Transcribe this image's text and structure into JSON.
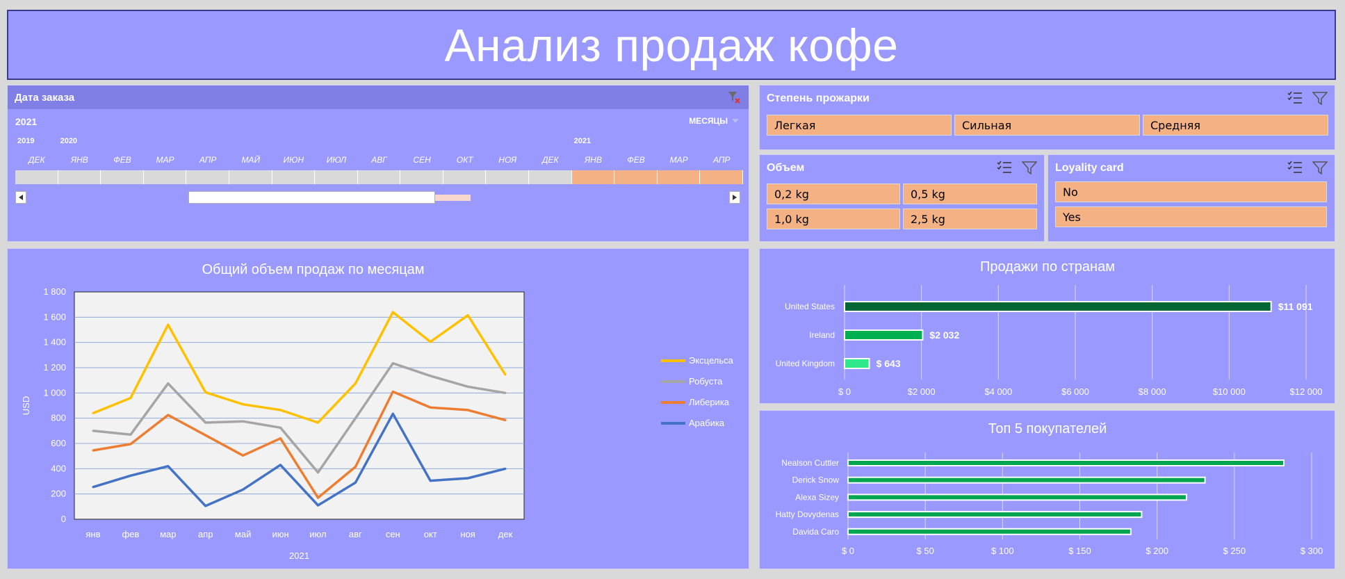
{
  "title": "Анализ продаж кофе",
  "timeline": {
    "header": "Дата заказа",
    "selected_year": "2021",
    "level_label": "МЕСЯЦЫ",
    "year_marks": [
      {
        "label": "2019",
        "col": 0
      },
      {
        "label": "2020",
        "col": 1
      },
      {
        "label": "2021",
        "col": 13
      }
    ],
    "months": [
      "ДЕК",
      "ЯНВ",
      "ФЕВ",
      "МАР",
      "АПР",
      "МАЙ",
      "ИЮН",
      "ИЮЛ",
      "АВГ",
      "СЕН",
      "ОКТ",
      "НОЯ",
      "ДЕК",
      "ЯНВ",
      "ФЕВ",
      "МАР",
      "АПР"
    ],
    "selected_from_col": 13
  },
  "roast_slicer": {
    "header": "Степень прожарки",
    "items": [
      "Легкая",
      "Сильная",
      "Средняя"
    ]
  },
  "volume_slicer": {
    "header": "Объем",
    "items": [
      "0,2 kg",
      "0,5 kg",
      "1,0 kg",
      "2,5 kg"
    ]
  },
  "loyalty_slicer": {
    "header": "Loyality card",
    "items": [
      "No",
      "Yes"
    ]
  },
  "chart_data": [
    {
      "type": "line",
      "title": "Общий объем продаж по месяцам",
      "xlabel": "2021",
      "ylabel": "USD",
      "categories": [
        "янв",
        "фев",
        "мар",
        "апр",
        "май",
        "июн",
        "июл",
        "авг",
        "сен",
        "окт",
        "ноя",
        "дек"
      ],
      "ylim": [
        0,
        1800
      ],
      "yticks": [
        0,
        200,
        400,
        600,
        800,
        1000,
        1200,
        1400,
        1600,
        1800
      ],
      "ytick_labels": [
        "0",
        "200",
        "400",
        "600",
        "800",
        "1 000",
        "1 200",
        "1 400",
        "1 600",
        "1 800"
      ],
      "grid": true,
      "legend_position": "right",
      "series": [
        {
          "name": "Эксцельса",
          "color": "#ffc000",
          "values": [
            840,
            960,
            1540,
            1005,
            910,
            865,
            765,
            1075,
            1640,
            1405,
            1615,
            1145
          ]
        },
        {
          "name": "Робуста",
          "color": "#a5a5a5",
          "values": [
            700,
            670,
            1075,
            765,
            775,
            725,
            370,
            800,
            1235,
            1135,
            1050,
            1000
          ]
        },
        {
          "name": "Либерика",
          "color": "#ed7d31",
          "values": [
            545,
            595,
            825,
            665,
            505,
            640,
            170,
            415,
            1010,
            885,
            865,
            785
          ]
        },
        {
          "name": "Арабика",
          "color": "#4472c4",
          "values": [
            255,
            345,
            420,
            105,
            235,
            430,
            110,
            290,
            835,
            305,
            325,
            400
          ]
        }
      ]
    },
    {
      "type": "bar",
      "orientation": "horizontal",
      "title": "Продажи по странам",
      "categories": [
        "United States",
        "Ireland",
        "United Kingdom"
      ],
      "values": [
        11091,
        2032,
        643
      ],
      "value_labels": [
        "$11 091",
        "$2 032",
        "$ 643"
      ],
      "colors": [
        "#006633",
        "#00b050",
        "#2ee88c"
      ],
      "xlim": [
        0,
        12000
      ],
      "xticks": [
        0,
        2000,
        4000,
        6000,
        8000,
        10000,
        12000
      ],
      "xtick_labels": [
        "$ 0",
        "$2 000",
        "$4 000",
        "$6 000",
        "$8 000",
        "$10 000",
        "$12 000"
      ],
      "grid": true
    },
    {
      "type": "bar",
      "orientation": "horizontal",
      "title": "Топ 5 покупателей",
      "categories": [
        "Nealson Cuttler",
        "Derick Snow",
        "Alexa Sizey",
        "Hatty Dovydenas",
        "Davida Caro"
      ],
      "values": [
        282,
        231,
        219,
        190,
        183
      ],
      "color": "#00a550",
      "xlim": [
        0,
        300
      ],
      "xticks": [
        0,
        50,
        100,
        150,
        200,
        250,
        300
      ],
      "xtick_labels": [
        "$ 0",
        "$ 50",
        "$ 100",
        "$ 150",
        "$ 200",
        "$ 250",
        "$ 300"
      ],
      "grid": true
    }
  ]
}
